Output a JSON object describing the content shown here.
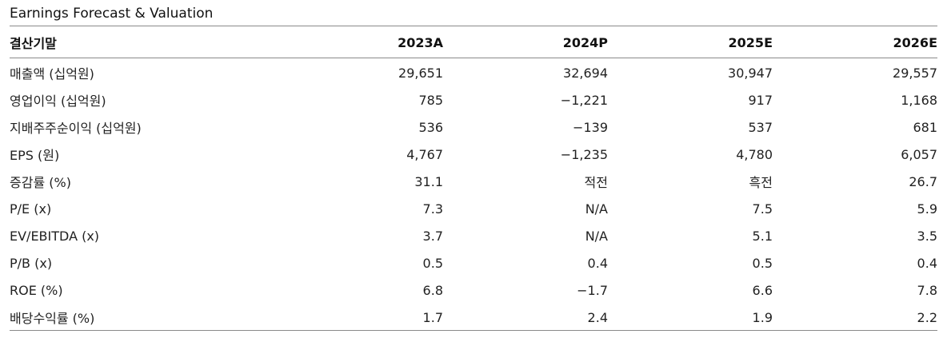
{
  "title": "Earnings Forecast & Valuation",
  "table": {
    "header": [
      "결산기말",
      "2023A",
      "2024P",
      "2025E",
      "2026E"
    ],
    "rows": [
      [
        "매출액 (십억원)",
        "29,651",
        "32,694",
        "30,947",
        "29,557"
      ],
      [
        "영업이익 (십억원)",
        "785",
        "−1,221",
        "917",
        "1,168"
      ],
      [
        "지배주주순이익 (십억원)",
        "536",
        "−139",
        "537",
        "681"
      ],
      [
        "EPS (원)",
        "4,767",
        "−1,235",
        "4,780",
        "6,057"
      ],
      [
        "증감률 (%)",
        "31.1",
        "적전",
        "흑전",
        "26.7"
      ],
      [
        "P/E (x)",
        "7.3",
        "N/A",
        "7.5",
        "5.9"
      ],
      [
        "EV/EBITDA (x)",
        "3.7",
        "N/A",
        "5.1",
        "3.5"
      ],
      [
        "P/B (x)",
        "0.5",
        "0.4",
        "0.5",
        "0.4"
      ],
      [
        "ROE (%)",
        "6.8",
        "−1.7",
        "6.6",
        "7.8"
      ],
      [
        "배당수익률 (%)",
        "1.7",
        "2.4",
        "1.9",
        "2.2"
      ]
    ]
  }
}
